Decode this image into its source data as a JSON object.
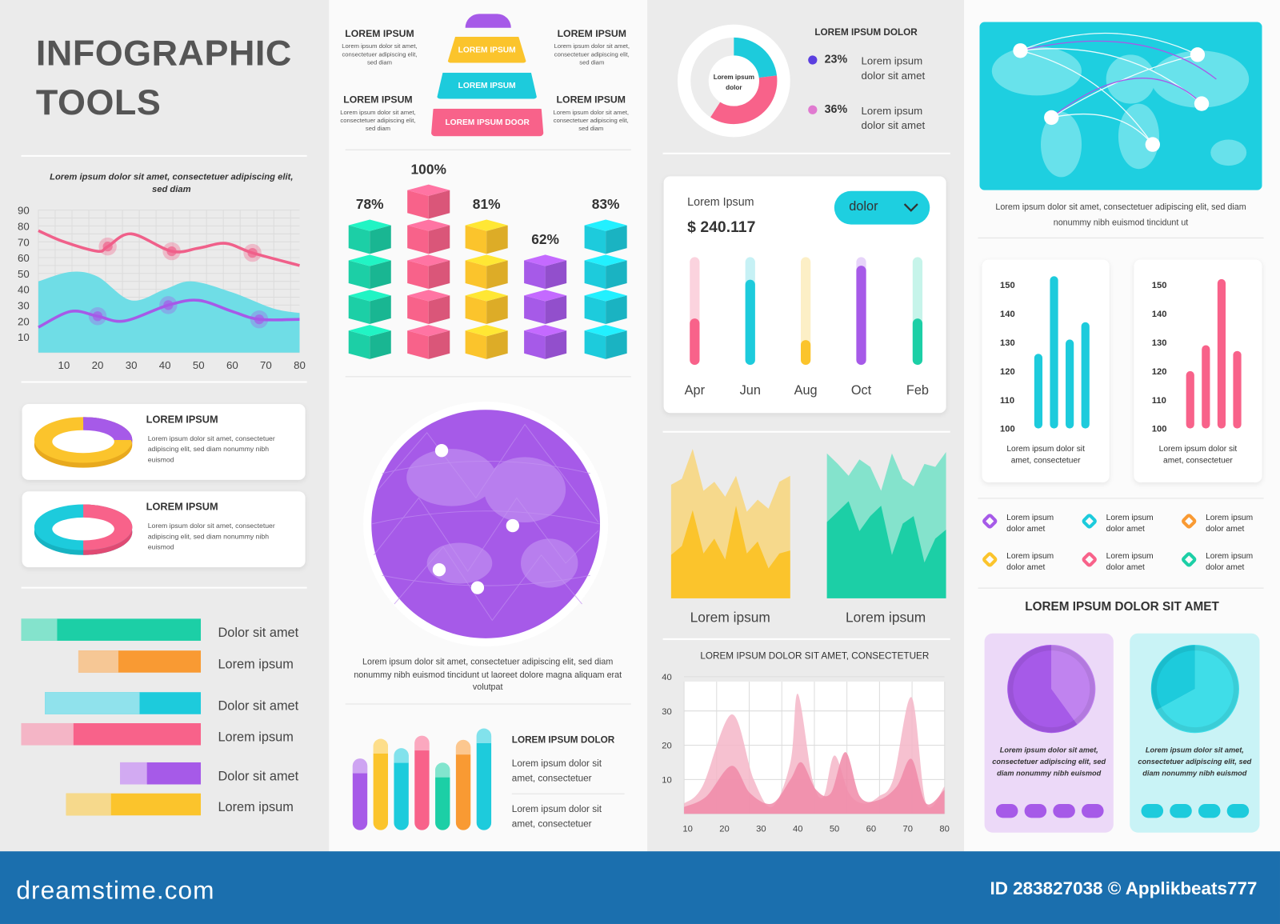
{
  "title": {
    "line1": "INFOGRAPHIC",
    "line2": "TOOLS"
  },
  "ring_cards": [
    {
      "title": "LOREM IPSUM",
      "desc": "Lorem ipsum dolor sit amet, consectetuer adipiscing elit, sed diam nonummy nibh euismod"
    },
    {
      "title": "LOREM IPSUM",
      "desc": "Lorem ipsum dolor sit amet, consectetuer adipiscing elit, sed diam nonummy nibh euismod"
    }
  ],
  "hbars": [
    {
      "label": "Dolor sit amet",
      "value": 100,
      "light": 20,
      "color": "#1ccfa6",
      "light_color": "#84e3cc"
    },
    {
      "label": "Lorem ipsum",
      "value": 68,
      "light": 22,
      "color": "#f99a33",
      "light_color": "#f6c795"
    },
    {
      "label": "Dolor sit amet",
      "value": 87,
      "light": 53,
      "color": "#1dcbdc",
      "light_color": "#90e2ec"
    },
    {
      "label": "Lorem ipsum",
      "value": 100,
      "light": 29,
      "color": "#f8628a",
      "light_color": "#f4b5c6"
    },
    {
      "label": "Dolor sit amet",
      "value": 45,
      "light": 15,
      "color": "#a65ae8",
      "light_color": "#d2aaf2"
    },
    {
      "label": "Lorem ipsum",
      "value": 75,
      "light": 25,
      "color": "#fbc42c",
      "light_color": "#f6d98c"
    }
  ],
  "pyramid": {
    "levels": [
      "LOREM IPSUM",
      "LOREM IPSUM",
      "LOREM IPSUM DOOR"
    ],
    "side_items": [
      {
        "title": "LOREM IPSUM",
        "desc": "Lorem ipsum dolor sit amet, consectetuer adipiscing elit, sed diam"
      },
      {
        "title": "LOREM IPSUM",
        "desc": "Lorem ipsum dolor sit amet, consectetuer adipiscing elit, sed diam"
      },
      {
        "title": "LOREM IPSUM",
        "desc": "Lorem ipsum dolor sit amet, consectetuer adipiscing elit, sed diam"
      },
      {
        "title": "LOREM IPSUM",
        "desc": "Lorem ipsum dolor sit amet, consectetuer adipiscing elit, sed diam"
      }
    ]
  },
  "globe_caption": "Lorem ipsum dolor sit amet, consectetuer adipiscing elit, sed diam nonummy nibh euismod tincidunt ut laoreet dolore magna aliquam erat volutpat",
  "bottom_bars_text": {
    "title": "LOREM IPSUM DOLOR",
    "items": [
      "Lorem ipsum dolor sit amet, consectetuer",
      "Lorem ipsum dolor sit amet, consectetuer"
    ]
  },
  "donut_legend": {
    "title": "LOREM IPSUM DOLOR",
    "center": "Lorem ipsum dolor",
    "items": [
      {
        "pct": "23%",
        "text1": "Lorem ipsum",
        "text2": "dolor sit amet",
        "color": "#5b3fe0"
      },
      {
        "pct": "36%",
        "text1": "Lorem ipsum",
        "text2": "dolor sit amet",
        "color": "#e07ad0"
      }
    ]
  },
  "progress_card": {
    "label": "Lorem Ipsum",
    "amount": "$ 240.117",
    "dropdown": "dolor"
  },
  "area_panels_labels": [
    "Lorem ipsum",
    "Lorem ipsum"
  ],
  "map_caption": [
    "Lorem ipsum dolor sit amet, consectetuer adipiscing elit, sed diam",
    "nonummy nibh euismod tincidunt ut"
  ],
  "bar_card_captions": [
    [
      "Lorem ipsum dolor sit",
      "amet, consectetuer"
    ],
    [
      "Lorem ipsum dolor sit",
      "amet, consectetuer"
    ]
  ],
  "icon_legend": [
    {
      "l1": "Lorem ipsum",
      "l2": "dolor amet",
      "color": "#a65ae8"
    },
    {
      "l1": "Lorem ipsum",
      "l2": "dolor amet",
      "color": "#1dcbdc"
    },
    {
      "l1": "Lorem ipsum",
      "l2": "dolor amet",
      "color": "#f99a33"
    },
    {
      "l1": "Lorem ipsum",
      "l2": "dolor amet",
      "color": "#fbc42c"
    },
    {
      "l1": "Lorem ipsum",
      "l2": "dolor amet",
      "color": "#f8628a"
    },
    {
      "l1": "Lorem ipsum",
      "l2": "dolor amet",
      "color": "#1ccfa6"
    }
  ],
  "pie_section_title": "LOREM IPSUM DOLOR SIT AMET",
  "pie_cards": [
    {
      "text": "Lorem ipsum dolor sit amet, consectetuer adipiscing elit, sed diam nonummy nibh euismod"
    },
    {
      "text": "Lorem ipsum dolor sit amet, consectetuer adipiscing elit, sed diam nonummy nibh euismod"
    }
  ],
  "footer": {
    "site": "dreamstime.com",
    "id": "ID 283827038 © Applikbeats777"
  },
  "chart_data": [
    {
      "type": "line",
      "title": "Lorem ipsum dolor sit amet, consectetuer adipiscing elit, sed diam",
      "x_ticks": [
        10,
        20,
        30,
        40,
        50,
        60,
        70,
        80
      ],
      "y_ticks": [
        90,
        80,
        70,
        60,
        50,
        40,
        30,
        20,
        10
      ],
      "xlim": [
        2.4,
        80
      ],
      "ylim": [
        0,
        90
      ],
      "grid": true,
      "series": [
        {
          "name": "pink",
          "kind": "line",
          "color": "#f0608a",
          "points": [
            [
              2.4,
              77
            ],
            [
              10,
              70
            ],
            [
              20,
              64
            ],
            [
              23,
              67
            ],
            [
              30,
              75
            ],
            [
              42,
              64
            ],
            [
              50,
              66
            ],
            [
              58,
              69
            ],
            [
              66,
              63
            ],
            [
              80,
              55
            ]
          ],
          "markers": [
            23,
            42,
            66
          ]
        },
        {
          "name": "cyan",
          "kind": "area",
          "color": "#6fdde6",
          "points": [
            [
              2.4,
              45
            ],
            [
              12,
              51
            ],
            [
              20,
              48
            ],
            [
              30,
              33
            ],
            [
              40,
              40
            ],
            [
              48,
              45
            ],
            [
              60,
              38
            ],
            [
              72,
              28
            ],
            [
              80,
              25
            ]
          ]
        },
        {
          "name": "purple",
          "kind": "line",
          "color": "#a65ae8",
          "points": [
            [
              2.4,
              16
            ],
            [
              12,
              26
            ],
            [
              20,
              23
            ],
            [
              28,
              20
            ],
            [
              41,
              30
            ],
            [
              50,
              33
            ],
            [
              60,
              26
            ],
            [
              68,
              21
            ],
            [
              80,
              21
            ]
          ],
          "markers": [
            20,
            41,
            68
          ]
        }
      ]
    },
    {
      "type": "bar",
      "subtype": "stacked-cubes",
      "labels": [
        "78%",
        "100%",
        "81%",
        "62%",
        "83%"
      ],
      "values": [
        78,
        100,
        81,
        62,
        83
      ],
      "cubes": [
        4,
        5,
        4,
        3,
        4
      ],
      "colors": [
        "#1ccfa6",
        "#f8628a",
        "#fbc42c",
        "#a65ae8",
        "#1dcbdc"
      ]
    },
    {
      "type": "bar",
      "ylim": [
        0,
        100
      ],
      "values": [
        69,
        88,
        79,
        91,
        65,
        87,
        98
      ],
      "colors": [
        "#a65ae8",
        "#fbc42c",
        "#1dcbdc",
        "#f8628a",
        "#1ccfa6",
        "#f99a33",
        "#1dcbdc"
      ]
    },
    {
      "type": "pie",
      "subtype": "donut",
      "segments": [
        {
          "value": 23,
          "color": "#1dcbdc"
        },
        {
          "value": 36,
          "color": "#f8628a"
        }
      ]
    },
    {
      "type": "bar",
      "subtype": "progress",
      "categories": [
        "Apr",
        "Jun",
        "Aug",
        "Oct",
        "Feb"
      ],
      "values": [
        43,
        79,
        23,
        92,
        43
      ],
      "colors": [
        "#f8628a",
        "#1dcbdc",
        "#fbc42c",
        "#a65ae8",
        "#1ccfa6"
      ],
      "track_colors": [
        "#fbd3de",
        "#c6f1f5",
        "#fcefc6",
        "#e7d4fa",
        "#c6f4ea"
      ]
    },
    {
      "type": "area",
      "panels": [
        {
          "colors": [
            "#f6d98c",
            "#fbc42c"
          ],
          "back": [
            76,
            80,
            100,
            72,
            78,
            68,
            82,
            58,
            66,
            60,
            78,
            82
          ],
          "front": [
            29,
            35,
            59,
            30,
            40,
            26,
            62,
            30,
            38,
            20,
            30,
            32
          ]
        },
        {
          "colors": [
            "#84e3cc",
            "#1ccfa6"
          ],
          "back": [
            97,
            90,
            82,
            93,
            88,
            72,
            97,
            80,
            75,
            90,
            88,
            98
          ],
          "front": [
            51,
            58,
            65,
            45,
            55,
            62,
            29,
            50,
            55,
            24,
            40,
            46
          ]
        }
      ]
    },
    {
      "type": "area",
      "title": "LOREM IPSUM DOLOR SIT AMET, CONSECTETUER",
      "x_ticks": [
        10,
        20,
        30,
        40,
        50,
        60,
        70,
        80
      ],
      "y_ticks": [
        40,
        30,
        20,
        10
      ],
      "xlim": [
        9,
        80
      ],
      "ylim": [
        0,
        40
      ],
      "grid": true,
      "series": [
        {
          "color": "#f5b6c8",
          "points": [
            [
              9,
              3
            ],
            [
              14,
              8
            ],
            [
              22,
              29
            ],
            [
              28,
              10
            ],
            [
              33,
              2
            ],
            [
              38,
              15
            ],
            [
              40,
              35
            ],
            [
              44,
              10
            ],
            [
              47,
              5
            ],
            [
              50,
              17
            ],
            [
              54,
              6
            ],
            [
              58,
              3
            ],
            [
              62,
              5
            ],
            [
              66,
              10
            ],
            [
              71,
              34
            ],
            [
              75,
              3
            ],
            [
              80,
              8
            ]
          ]
        },
        {
          "color": "#f08aa8",
          "points": [
            [
              9,
              2
            ],
            [
              15,
              5
            ],
            [
              22,
              14
            ],
            [
              27,
              6
            ],
            [
              33,
              3
            ],
            [
              38,
              10
            ],
            [
              41,
              15
            ],
            [
              45,
              7
            ],
            [
              49,
              6
            ],
            [
              53,
              18
            ],
            [
              57,
              5
            ],
            [
              62,
              4
            ],
            [
              67,
              8
            ],
            [
              71,
              16
            ],
            [
              75,
              3
            ],
            [
              80,
              7
            ]
          ]
        }
      ]
    },
    {
      "type": "bar",
      "ylim": [
        100,
        150
      ],
      "y_ticks": [
        150,
        140,
        130,
        120,
        110,
        100
      ],
      "values": [
        126,
        153,
        131,
        137
      ],
      "color": "#1dcbdc"
    },
    {
      "type": "bar",
      "ylim": [
        100,
        150
      ],
      "y_ticks": [
        150,
        140,
        130,
        120,
        110,
        100
      ],
      "values": [
        120,
        129,
        152,
        127
      ],
      "color": "#f8628a"
    },
    {
      "type": "pie",
      "segments": [
        {
          "value": 40,
          "color": "#c083ef"
        },
        {
          "value": 60,
          "color": "#a65ae8"
        }
      ]
    },
    {
      "type": "pie",
      "segments": [
        {
          "value": 67,
          "color": "#3fdde8"
        },
        {
          "value": 33,
          "color": "#1dcbdc"
        }
      ]
    }
  ]
}
